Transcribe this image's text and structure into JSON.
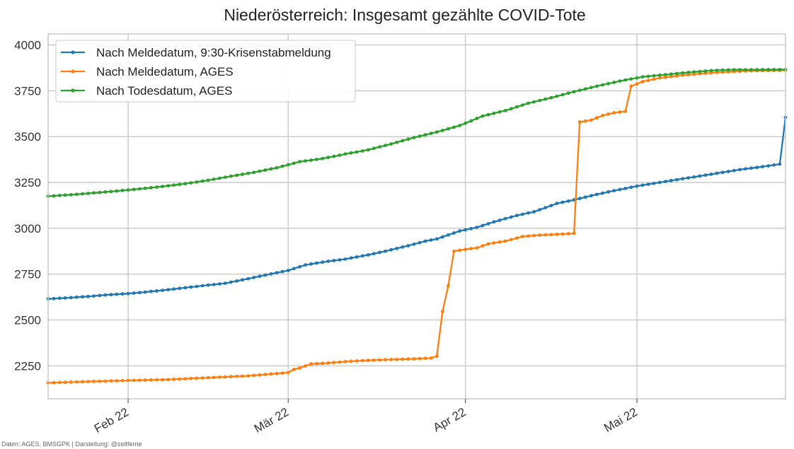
{
  "colors": {
    "blue": "#1f77b4",
    "orange": "#ff7f0e",
    "green": "#2ca02c",
    "grid": "#cccccc",
    "frame": "#c8c8c8"
  },
  "credit": "Daten: AGES, BMSGPK | Darstellung: @zeitferne",
  "chart_data": {
    "type": "line",
    "title": "Niederösterreich: Insgesamt gezählte COVID-Tote",
    "xlabel": "",
    "ylabel": "",
    "x_range": [
      "2022-01-18",
      "2022-05-27"
    ],
    "ylim": [
      2070,
      4060
    ],
    "y_ticks": [
      2250,
      2500,
      2750,
      3000,
      3250,
      3500,
      3750,
      4000
    ],
    "x_ticks": [
      {
        "date": "2022-02-01",
        "label": "Feb 22"
      },
      {
        "date": "2022-03-01",
        "label": "Mär 22"
      },
      {
        "date": "2022-04-01",
        "label": "Apr 22"
      },
      {
        "date": "2022-05-01",
        "label": "Mai 22"
      }
    ],
    "grid": true,
    "legend_position": "top-left",
    "series": [
      {
        "name": "Nach Meldedatum, 9:30-Krisenstabmeldung",
        "color": "#1f77b4",
        "points": [
          [
            "2022-01-18",
            2615
          ],
          [
            "2022-01-21",
            2620
          ],
          [
            "2022-01-25",
            2628
          ],
          [
            "2022-01-28",
            2636
          ],
          [
            "2022-02-01",
            2644
          ],
          [
            "2022-02-04",
            2652
          ],
          [
            "2022-02-08",
            2665
          ],
          [
            "2022-02-11",
            2676
          ],
          [
            "2022-02-15",
            2690
          ],
          [
            "2022-02-18",
            2700
          ],
          [
            "2022-02-22",
            2725
          ],
          [
            "2022-02-25",
            2745
          ],
          [
            "2022-03-01",
            2770
          ],
          [
            "2022-03-04",
            2800
          ],
          [
            "2022-03-08",
            2820
          ],
          [
            "2022-03-11",
            2832
          ],
          [
            "2022-03-15",
            2855
          ],
          [
            "2022-03-18",
            2875
          ],
          [
            "2022-03-22",
            2905
          ],
          [
            "2022-03-25",
            2930
          ],
          [
            "2022-03-27",
            2942
          ],
          [
            "2022-03-31",
            2985
          ],
          [
            "2022-04-03",
            3005
          ],
          [
            "2022-04-06",
            3035
          ],
          [
            "2022-04-10",
            3070
          ],
          [
            "2022-04-13",
            3090
          ],
          [
            "2022-04-17",
            3135
          ],
          [
            "2022-04-20",
            3155
          ],
          [
            "2022-04-24",
            3185
          ],
          [
            "2022-04-27",
            3205
          ],
          [
            "2022-05-01",
            3230
          ],
          [
            "2022-05-05",
            3250
          ],
          [
            "2022-05-08",
            3265
          ],
          [
            "2022-05-12",
            3285
          ],
          [
            "2022-05-15",
            3300
          ],
          [
            "2022-05-19",
            3320
          ],
          [
            "2022-05-23",
            3336
          ],
          [
            "2022-05-26",
            3350
          ],
          [
            "2022-05-27",
            3605
          ]
        ]
      },
      {
        "name": "Nach Meldedatum, AGES",
        "color": "#ff7f0e",
        "points": [
          [
            "2022-01-18",
            2157
          ],
          [
            "2022-01-25",
            2164
          ],
          [
            "2022-02-01",
            2170
          ],
          [
            "2022-02-08",
            2175
          ],
          [
            "2022-02-15",
            2185
          ],
          [
            "2022-02-22",
            2195
          ],
          [
            "2022-03-01",
            2213
          ],
          [
            "2022-03-02",
            2230
          ],
          [
            "2022-03-03",
            2238
          ],
          [
            "2022-03-05",
            2260
          ],
          [
            "2022-03-08",
            2265
          ],
          [
            "2022-03-11",
            2273
          ],
          [
            "2022-03-14",
            2278
          ],
          [
            "2022-03-17",
            2282
          ],
          [
            "2022-03-20",
            2285
          ],
          [
            "2022-03-23",
            2288
          ],
          [
            "2022-03-26",
            2292
          ],
          [
            "2022-03-27",
            2302
          ],
          [
            "2022-03-28",
            2545
          ],
          [
            "2022-03-29",
            2685
          ],
          [
            "2022-03-30",
            2875
          ],
          [
            "2022-04-01",
            2885
          ],
          [
            "2022-04-03",
            2893
          ],
          [
            "2022-04-05",
            2915
          ],
          [
            "2022-04-08",
            2930
          ],
          [
            "2022-04-11",
            2955
          ],
          [
            "2022-04-14",
            2963
          ],
          [
            "2022-04-17",
            2967
          ],
          [
            "2022-04-20",
            2972
          ],
          [
            "2022-04-21",
            3580
          ],
          [
            "2022-04-23",
            3590
          ],
          [
            "2022-04-25",
            3615
          ],
          [
            "2022-04-27",
            3630
          ],
          [
            "2022-04-29",
            3638
          ],
          [
            "2022-04-30",
            3775
          ],
          [
            "2022-05-02",
            3800
          ],
          [
            "2022-05-05",
            3820
          ],
          [
            "2022-05-09",
            3835
          ],
          [
            "2022-05-14",
            3848
          ],
          [
            "2022-05-20",
            3858
          ],
          [
            "2022-05-27",
            3862
          ]
        ]
      },
      {
        "name": "Nach Todesdatum, AGES",
        "color": "#2ca02c",
        "points": [
          [
            "2022-01-18",
            3175
          ],
          [
            "2022-01-22",
            3183
          ],
          [
            "2022-01-26",
            3193
          ],
          [
            "2022-01-30",
            3203
          ],
          [
            "2022-02-03",
            3215
          ],
          [
            "2022-02-07",
            3228
          ],
          [
            "2022-02-11",
            3243
          ],
          [
            "2022-02-15",
            3262
          ],
          [
            "2022-02-19",
            3284
          ],
          [
            "2022-02-23",
            3305
          ],
          [
            "2022-02-27",
            3330
          ],
          [
            "2022-03-03",
            3363
          ],
          [
            "2022-03-07",
            3380
          ],
          [
            "2022-03-11",
            3405
          ],
          [
            "2022-03-15",
            3428
          ],
          [
            "2022-03-19",
            3460
          ],
          [
            "2022-03-23",
            3495
          ],
          [
            "2022-03-27",
            3525
          ],
          [
            "2022-03-31",
            3560
          ],
          [
            "2022-04-04",
            3612
          ],
          [
            "2022-04-08",
            3642
          ],
          [
            "2022-04-12",
            3682
          ],
          [
            "2022-04-16",
            3712
          ],
          [
            "2022-04-20",
            3745
          ],
          [
            "2022-04-24",
            3775
          ],
          [
            "2022-04-28",
            3803
          ],
          [
            "2022-05-02",
            3826
          ],
          [
            "2022-05-06",
            3838
          ],
          [
            "2022-05-10",
            3850
          ],
          [
            "2022-05-14",
            3860
          ],
          [
            "2022-05-18",
            3865
          ],
          [
            "2022-05-22",
            3865
          ],
          [
            "2022-05-27",
            3866
          ]
        ]
      }
    ]
  }
}
